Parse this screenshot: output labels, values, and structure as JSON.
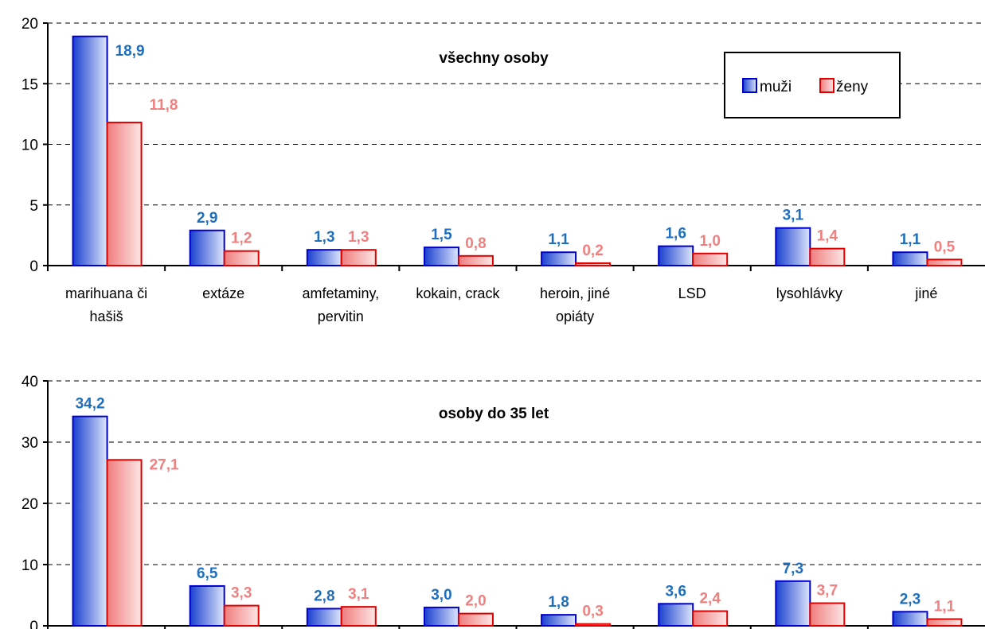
{
  "colors": {
    "muzi": "#1f6fbf",
    "zeny": "#f08080",
    "muzi_stroke": "#0000cc",
    "zeny_stroke": "#e00000"
  },
  "legend": {
    "placement": "top-right of first chart",
    "items": [
      "muži",
      "ženy"
    ]
  },
  "categories": [
    [
      "marihuana či",
      "hašiš"
    ],
    [
      "extáze"
    ],
    [
      "amfetaminy,",
      "pervitin"
    ],
    [
      "kokain, crack"
    ],
    [
      "heroin, jiné",
      "opiáty"
    ],
    [
      "LSD"
    ],
    [
      "lysohlávky"
    ],
    [
      "jiné"
    ]
  ],
  "chart_data": [
    {
      "type": "bar",
      "title": "všechny osoby",
      "categories": [
        "marihuana či hašiš",
        "extáze",
        "amfetaminy, pervitin",
        "kokain, crack",
        "heroin, jiné opiáty",
        "LSD",
        "lysohlávky",
        "jiné"
      ],
      "ylim": [
        0,
        20
      ],
      "yticks": [
        "0",
        "5",
        "10",
        "15",
        "20"
      ],
      "grid": "horizontal dashed",
      "series": [
        {
          "name": "muži",
          "values": [
            18.9,
            2.9,
            1.3,
            1.5,
            1.1,
            1.6,
            3.1,
            1.1
          ],
          "labels": [
            "18,9",
            "2,9",
            "1,3",
            "1,5",
            "1,1",
            "1,6",
            "3,1",
            "1,1"
          ]
        },
        {
          "name": "ženy",
          "values": [
            11.8,
            1.2,
            1.3,
            0.8,
            0.2,
            1.0,
            1.4,
            0.5
          ],
          "labels": [
            "11,8",
            "1,2",
            "1,3",
            "0,8",
            "0,2",
            "1,0",
            "1,4",
            "0,5"
          ]
        }
      ]
    },
    {
      "type": "bar",
      "title": "osoby do 35 let",
      "categories": [
        "marihuana či hašiš",
        "extáze",
        "amfetaminy, pervitin",
        "kokain, crack",
        "heroin, jiné opiáty",
        "LSD",
        "lysohlávky",
        "jiné"
      ],
      "ylim": [
        0,
        40
      ],
      "yticks": [
        "0",
        "10",
        "20",
        "30",
        "40"
      ],
      "grid": "horizontal dashed",
      "series": [
        {
          "name": "muži",
          "values": [
            34.2,
            6.5,
            2.8,
            3.0,
            1.8,
            3.6,
            7.3,
            2.3
          ],
          "labels": [
            "34,2",
            "6,5",
            "2,8",
            "3,0",
            "1,8",
            "3,6",
            "7,3",
            "2,3"
          ]
        },
        {
          "name": "ženy",
          "values": [
            27.1,
            3.3,
            3.1,
            2.0,
            0.3,
            2.4,
            3.7,
            1.1
          ],
          "labels": [
            "27,1",
            "3,3",
            "3,1",
            "2,0",
            "0,3",
            "2,4",
            "3,7",
            "1,1"
          ]
        }
      ]
    }
  ]
}
